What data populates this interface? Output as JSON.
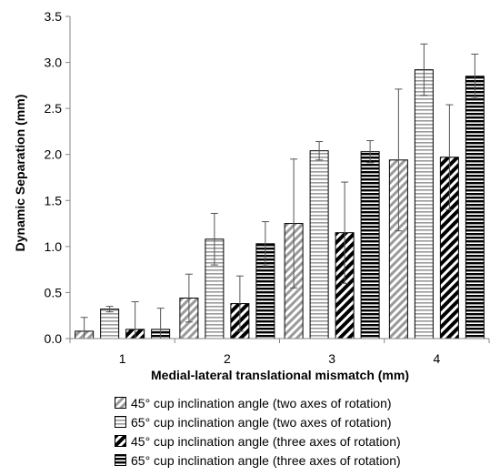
{
  "chart_data": {
    "type": "bar",
    "title": "",
    "xlabel": "Medial-lateral translational mismatch (mm)",
    "ylabel": "Dynamic Separation (mm)",
    "categories": [
      "1",
      "2",
      "3",
      "4"
    ],
    "ylim": [
      0,
      3.5
    ],
    "yticks": [
      "0.0",
      "0.5",
      "1.0",
      "1.5",
      "2.0",
      "2.5",
      "3.0",
      "3.5"
    ],
    "grid": false,
    "legend_position": "bottom",
    "error_bars": "positive and negative",
    "series": [
      {
        "name": "45° cup inclination angle (two axes of rotation)",
        "pattern": "diagonal-gray",
        "values": [
          0.08,
          0.44,
          1.25,
          1.94
        ],
        "errors": [
          0.15,
          0.26,
          0.7,
          0.77
        ]
      },
      {
        "name": "65° cup inclination angle (two axes of rotation)",
        "pattern": "horizontal-gray",
        "values": [
          0.32,
          1.08,
          2.04,
          2.92
        ],
        "errors": [
          0.03,
          0.28,
          0.1,
          0.28
        ]
      },
      {
        "name": "45° cup inclination angle (three axes of rotation)",
        "pattern": "diagonal-black",
        "values": [
          0.1,
          0.38,
          1.15,
          1.97
        ],
        "errors": [
          0.3,
          0.3,
          0.55,
          0.57
        ]
      },
      {
        "name": "65° cup inclination angle (three axes of rotation)",
        "pattern": "horizontal-black",
        "values": [
          0.1,
          1.03,
          2.03,
          2.85
        ],
        "errors": [
          0.23,
          0.24,
          0.12,
          0.24
        ]
      }
    ]
  }
}
